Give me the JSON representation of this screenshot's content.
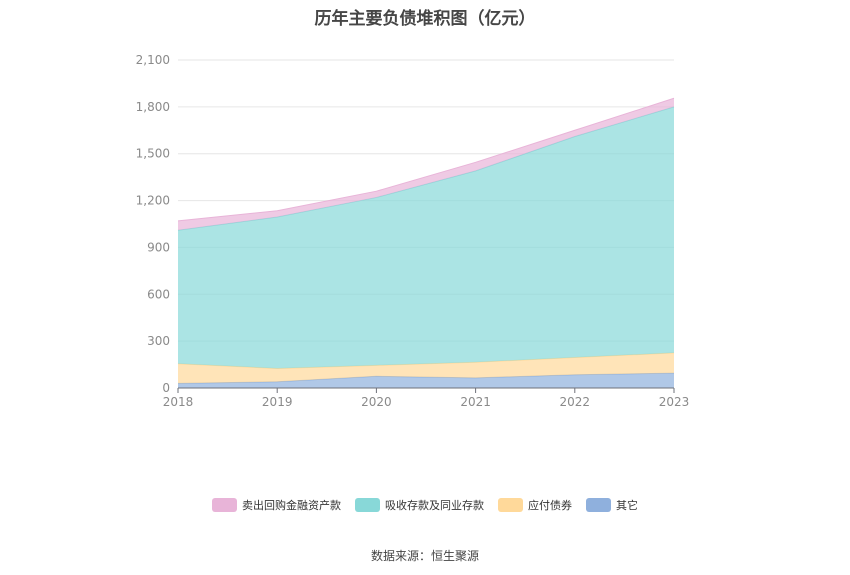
{
  "chart_data": {
    "type": "area",
    "stacked": true,
    "title": "历年主要负债堆积图（亿元）",
    "categories": [
      "2018",
      "2019",
      "2020",
      "2021",
      "2022",
      "2023"
    ],
    "ylim": [
      0,
      2100
    ],
    "yticks": [
      "0",
      "300",
      "600",
      "900",
      "1,200",
      "1,500",
      "1,800",
      "2,100"
    ],
    "ytick_values": [
      0,
      300,
      600,
      900,
      1200,
      1500,
      1800,
      2100
    ],
    "grid": true,
    "legend_position": "bottom",
    "series": [
      {
        "name": "其它",
        "color": "#8fb0dd",
        "values": [
          30,
          40,
          75,
          65,
          85,
          95
        ]
      },
      {
        "name": "应付债券",
        "color": "#ffd99a",
        "values": [
          125,
          85,
          70,
          100,
          110,
          130
        ]
      },
      {
        "name": "吸收存款及同业存款",
        "color": "#88d8d8",
        "values": [
          855,
          970,
          1075,
          1225,
          1415,
          1575
        ]
      },
      {
        "name": "卖出回购金融资产款",
        "color": "#e8b4d8",
        "values": [
          60,
          40,
          40,
          55,
          40,
          55
        ]
      }
    ]
  },
  "legend_order": [
    "卖出回购金融资产款",
    "吸收存款及同业存款",
    "应付债券",
    "其它"
  ],
  "source": "数据来源：恒生聚源"
}
